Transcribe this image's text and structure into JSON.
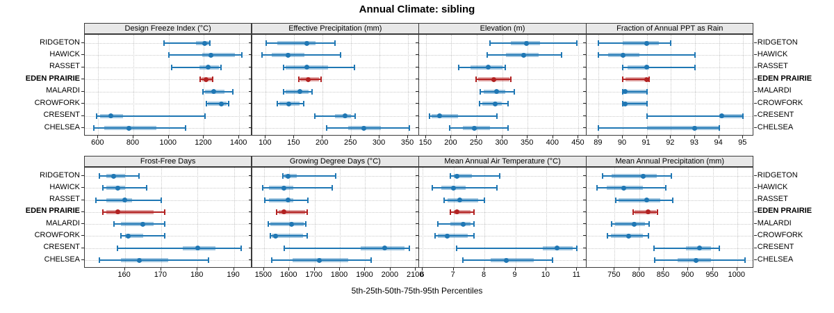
{
  "title": "Annual Climate: sibling",
  "caption": "5th-25th-50th-75th-95th Percentiles",
  "chart_data": {
    "type": "trellis-percentile-dotplot",
    "title": "Annual Climate: sibling",
    "caption": "5th-25th-50th-75th-95th Percentiles",
    "percentiles": [
      5,
      25,
      50,
      75,
      95
    ],
    "sites_top_to_bottom": [
      "RIDGETON",
      "HAWICK",
      "RASSET",
      "EDEN PRAIRIE",
      "MALARDI",
      "CROWFORK",
      "CRESENT",
      "CHELSEA"
    ],
    "highlight_site": "EDEN PRAIRIE",
    "grid": "dotted",
    "legend_position": "none",
    "colors": {
      "series": "#1f77b4",
      "series_band": "#1f77b4",
      "highlight": "#b22222",
      "highlight_band": "#b22222",
      "strip_bg": "#e8e8e8",
      "gridline": "#c9c9c9"
    },
    "panels": [
      {
        "title": "Design Freeze Index (°C)",
        "slug": "design-freeze-index",
        "row": 0,
        "col": 0,
        "xlim": [
          524,
          1473
        ],
        "ticks": [
          600,
          800,
          1000,
          1200,
          1400
        ],
        "values": {
          "RIDGETON": [
            975,
            1155,
            1205,
            1228,
            1232
          ],
          "HAWICK": [
            1000,
            1190,
            1240,
            1375,
            1415
          ],
          "RASSET": [
            1015,
            1175,
            1225,
            1285,
            1295
          ],
          "EDEN PRAIRIE": [
            1180,
            1188,
            1212,
            1244,
            1250
          ],
          "MALARDI": [
            1195,
            1205,
            1255,
            1315,
            1365
          ],
          "CROWFORK": [
            1213,
            1222,
            1297,
            1330,
            1340
          ],
          "CRESENT": [
            590,
            610,
            672,
            740,
            1205
          ],
          "CHELSEA": [
            575,
            635,
            775,
            930,
            1095
          ]
        }
      },
      {
        "title": "Effective Precipitation (mm)",
        "slug": "effective-precipitation",
        "row": 0,
        "col": 1,
        "xlim": [
          76,
          370
        ],
        "ticks": [
          100,
          150,
          200,
          250,
          300,
          350
        ],
        "values": {
          "RIDGETON": [
            101,
            120,
            172,
            187,
            222
          ],
          "HAWICK": [
            94,
            111,
            139,
            168,
            231
          ],
          "RASSET": [
            131,
            135,
            172,
            210,
            256
          ],
          "EDEN PRAIRIE": [
            158,
            161,
            175,
            194,
            197
          ],
          "MALARDI": [
            131,
            135,
            160,
            175,
            182
          ],
          "CROWFORK": [
            120,
            124,
            140,
            159,
            167
          ],
          "CRESENT": [
            186,
            222,
            239,
            250,
            257
          ],
          "CHELSEA": [
            207,
            245,
            273,
            302,
            352
          ]
        }
      },
      {
        "title": "Elevation (m)",
        "slug": "elevation",
        "row": 0,
        "col": 2,
        "xlim": [
          137,
          466
        ],
        "ticks": [
          150,
          200,
          250,
          300,
          350,
          400,
          450
        ],
        "values": {
          "RIDGETON": [
            276,
            317,
            348,
            374,
            447
          ],
          "HAWICK": [
            271,
            308,
            342,
            372,
            417
          ],
          "RASSET": [
            215,
            238,
            273,
            301,
            306
          ],
          "EDEN PRAIRIE": [
            248,
            252,
            283,
            314,
            317
          ],
          "MALARDI": [
            257,
            263,
            289,
            306,
            324
          ],
          "CROWFORK": [
            256,
            261,
            286,
            299,
            312
          ],
          "CRESENT": [
            157,
            161,
            177,
            213,
            289
          ],
          "CHELSEA": [
            197,
            222,
            245,
            276,
            312
          ]
        }
      },
      {
        "title": "Fraction of Annual PPT as Rain",
        "slug": "fraction-of-annual-ppt-as-rain",
        "row": 0,
        "col": 3,
        "xlim": [
          88.5,
          95.45
        ],
        "ticks": [
          89,
          90,
          91,
          92,
          93,
          94,
          95
        ],
        "values": {
          "RIDGETON": [
            89,
            90,
            91,
            91.5,
            92
          ],
          "HAWICK": [
            89,
            89.4,
            90,
            90.7,
            93
          ],
          "RASSET": [
            90,
            90.2,
            91,
            91.1,
            93
          ],
          "EDEN PRAIRIE": [
            90,
            90.1,
            91,
            91,
            91.1
          ],
          "MALARDI": [
            90,
            90,
            90.1,
            91,
            91
          ],
          "CROWFORK": [
            90,
            90,
            90.1,
            91,
            91
          ],
          "CRESENT": [
            91,
            94,
            94.1,
            95,
            95
          ],
          "CHELSEA": [
            89,
            91,
            93,
            94,
            94
          ]
        }
      },
      {
        "title": "Frost-Free Days",
        "slug": "frost-free-days",
        "row": 1,
        "col": 0,
        "xlim": [
          149,
          195
        ],
        "ticks": [
          160,
          170,
          180,
          190
        ],
        "values": {
          "RIDGETON": [
            153,
            155,
            157,
            160,
            164
          ],
          "HAWICK": [
            154,
            155,
            158,
            160,
            166
          ],
          "RASSET": [
            152,
            155,
            160,
            162,
            170
          ],
          "EDEN PRAIRIE": [
            154,
            155,
            158,
            168,
            171
          ],
          "MALARDI": [
            157,
            159,
            165,
            168,
            171
          ],
          "CROWFORK": [
            159,
            160,
            161,
            165,
            171
          ],
          "CRESENT": [
            158,
            176,
            180,
            185,
            192
          ],
          "CHELSEA": [
            153,
            159,
            164,
            172,
            183
          ]
        }
      },
      {
        "title": "Growing Degree Days (°C)",
        "slug": "growing-degree-days",
        "row": 1,
        "col": 1,
        "xlim": [
          1453,
          2114
        ],
        "ticks": [
          1500,
          1600,
          1700,
          1800,
          1900,
          2000,
          2100
        ],
        "values": {
          "RIDGETON": [
            1576,
            1580,
            1596,
            1631,
            1784
          ],
          "HAWICK": [
            1496,
            1521,
            1578,
            1617,
            1770
          ],
          "RASSET": [
            1503,
            1521,
            1595,
            1615,
            1673
          ],
          "EDEN PRAIRIE": [
            1551,
            1558,
            1579,
            1662,
            1670
          ],
          "MALARDI": [
            1518,
            1526,
            1608,
            1658,
            1665
          ],
          "CROWFORK": [
            1526,
            1530,
            1546,
            1653,
            1670
          ],
          "CRESENT": [
            1579,
            1882,
            1976,
            2055,
            2074
          ],
          "CHELSEA": [
            1530,
            1612,
            1720,
            1832,
            1923
          ]
        }
      },
      {
        "title": "Mean Annual Air Temperature (°C)",
        "slug": "mean-annual-air-temperature",
        "row": 1,
        "col": 2,
        "xlim": [
          5.89,
          11.31
        ],
        "ticks": [
          6,
          7,
          8,
          9,
          10,
          11
        ],
        "values": {
          "RIDGETON": [
            6.9,
            7.0,
            7.1,
            7.6,
            8.5
          ],
          "HAWICK": [
            6.3,
            6.6,
            7.0,
            7.4,
            8.4
          ],
          "RASSET": [
            6.7,
            6.8,
            7.2,
            7.8,
            8.0
          ],
          "EDEN PRAIRIE": [
            6.9,
            7.0,
            7.1,
            7.55,
            7.65
          ],
          "MALARDI": [
            6.5,
            6.9,
            7.3,
            7.55,
            7.65
          ],
          "CROWFORK": [
            6.4,
            6.5,
            6.8,
            7.45,
            7.65
          ],
          "CRESENT": [
            7.1,
            9.9,
            10.35,
            10.85,
            11.0
          ],
          "CHELSEA": [
            7.3,
            8.2,
            8.7,
            9.6,
            10.2
          ]
        }
      },
      {
        "title": "Mean Annual Precipitation (mm)",
        "slug": "mean-annual-precipitation",
        "row": 1,
        "col": 3,
        "xlim": [
          693,
          1034
        ],
        "ticks": [
          750,
          800,
          850,
          900,
          950,
          1000
        ],
        "values": {
          "RIDGETON": [
            725,
            744,
            808,
            836,
            865
          ],
          "HAWICK": [
            714,
            734,
            768,
            808,
            855
          ],
          "RASSET": [
            753,
            758,
            816,
            843,
            868
          ],
          "EDEN PRAIRIE": [
            788,
            791,
            818,
            834,
            838
          ],
          "MALARDI": [
            744,
            751,
            790,
            812,
            821
          ],
          "CROWFORK": [
            736,
            742,
            778,
            808,
            819
          ],
          "CRESENT": [
            830,
            895,
            923,
            947,
            963
          ],
          "CHELSEA": [
            831,
            878,
            916,
            947,
            1016
          ]
        }
      }
    ]
  }
}
